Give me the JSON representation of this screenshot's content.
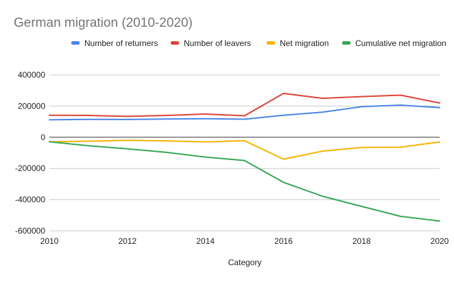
{
  "chart_data": {
    "type": "line",
    "title": "German migration (2010-2020)",
    "xlabel": "Category",
    "ylabel": "",
    "x": [
      2010,
      2011,
      2012,
      2013,
      2014,
      2015,
      2016,
      2017,
      2018,
      2019,
      2020
    ],
    "xlim": [
      2010,
      2020
    ],
    "ylim": [
      -600000,
      400000
    ],
    "x_ticks": [
      "2010",
      "2012",
      "2014",
      "2016",
      "2018",
      "2020"
    ],
    "y_ticks": [
      "400000",
      "200000",
      "0",
      "-200000",
      "-400000",
      "-600000"
    ],
    "grid": true,
    "legend_position": "top",
    "series": [
      {
        "name": "Number of returners",
        "color": "#4a86e8",
        "values": [
          112000,
          115000,
          114000,
          117000,
          119000,
          116000,
          141000,
          161000,
          196000,
          206000,
          190000
        ]
      },
      {
        "name": "Number of leavers",
        "color": "#db4437",
        "values": [
          141000,
          140000,
          134000,
          140000,
          149000,
          138000,
          281000,
          250000,
          261000,
          270000,
          220000
        ]
      },
      {
        "name": "Net migration",
        "color": "#f4b400",
        "values": [
          -29000,
          -25000,
          -20000,
          -23000,
          -30000,
          -22000,
          -140000,
          -89000,
          -65000,
          -64000,
          -30000
        ]
      },
      {
        "name": "Cumulative net migration",
        "color": "#34a853",
        "values": [
          -29000,
          -54000,
          -74000,
          -97000,
          -127000,
          -149000,
          -289000,
          -378000,
          -443000,
          -507000,
          -537000
        ]
      }
    ]
  }
}
